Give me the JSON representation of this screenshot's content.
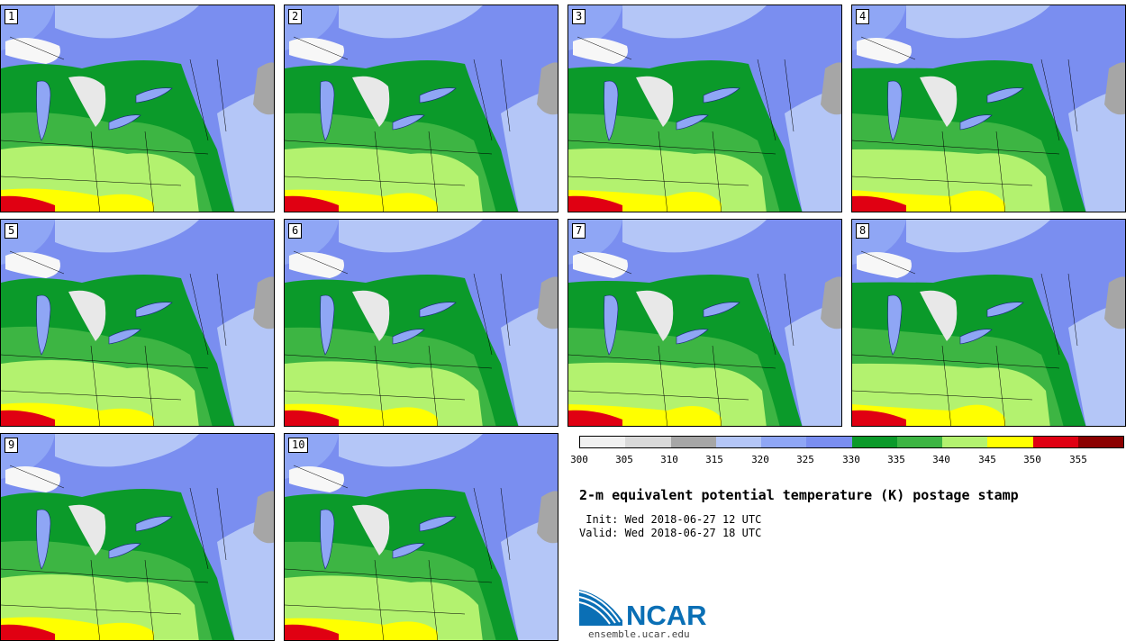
{
  "panels": [
    {
      "label": "1"
    },
    {
      "label": "2"
    },
    {
      "label": "3"
    },
    {
      "label": "4"
    },
    {
      "label": "5"
    },
    {
      "label": "6"
    },
    {
      "label": "7"
    },
    {
      "label": "8"
    },
    {
      "label": "9"
    },
    {
      "label": "10"
    }
  ],
  "colorbar": {
    "colors": [
      "#f0f0f0",
      "#d9d9d9",
      "#a6a6a6",
      "#b4c6f7",
      "#8fa6f5",
      "#7a8ef0",
      "#0b9a2a",
      "#3db543",
      "#b3f26f",
      "#ffff00",
      "#e00012",
      "#8b0000"
    ],
    "ticks": [
      "300",
      "305",
      "310",
      "315",
      "320",
      "325",
      "330",
      "335",
      "340",
      "345",
      "350",
      "355"
    ]
  },
  "title": "2-m equivalent potential temperature (K) postage stamp",
  "init": " Init: Wed 2018-06-27 12 UTC",
  "valid": "Valid: Wed 2018-06-27 18 UTC",
  "logo": {
    "text": "NCAR",
    "url": "ensemble.ucar.edu"
  }
}
